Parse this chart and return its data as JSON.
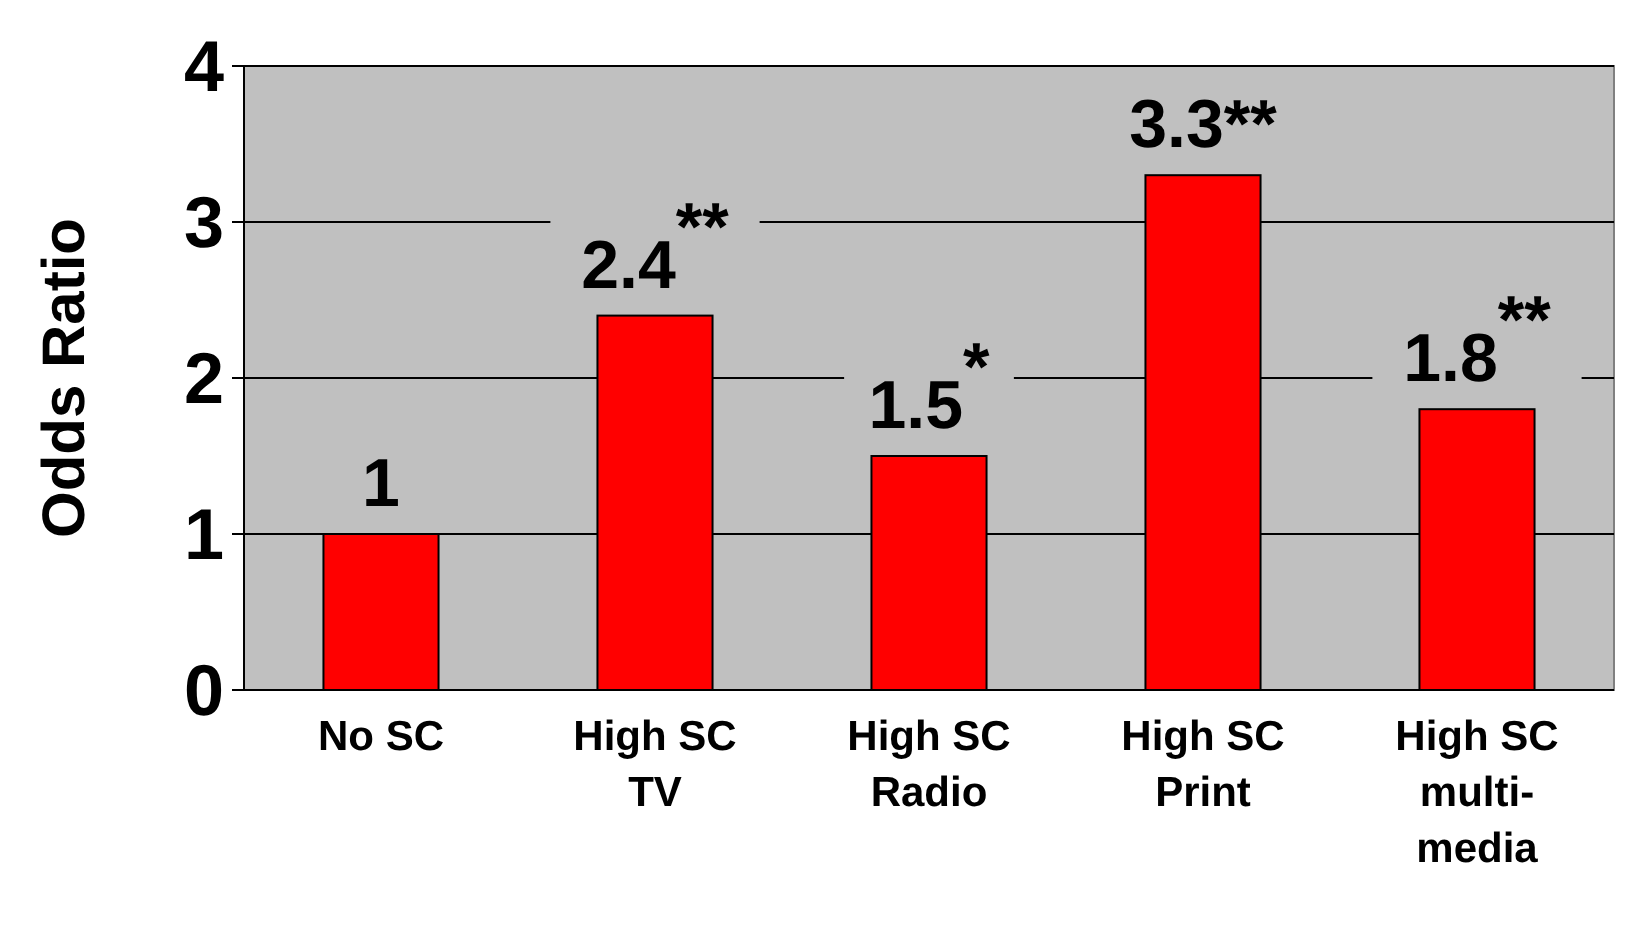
{
  "chart_data": {
    "type": "bar",
    "ylabel": "Odds Ratio",
    "categories": [
      "No SC",
      "High SC\nTV",
      "High SC\nRadio",
      "High SC\nPrint",
      "High SC\nmulti-\nmedia"
    ],
    "values": [
      1,
      2.4,
      1.5,
      3.3,
      1.8
    ],
    "value_labels": [
      "1",
      "2.4$^{**}$",
      "1.5$^{*}$",
      "3.3**",
      "1.8$^{**}$"
    ],
    "color": "#ff0000",
    "ylim": [
      0,
      4
    ],
    "yticks": [
      0,
      1,
      2,
      3,
      4
    ],
    "grid": "y"
  }
}
